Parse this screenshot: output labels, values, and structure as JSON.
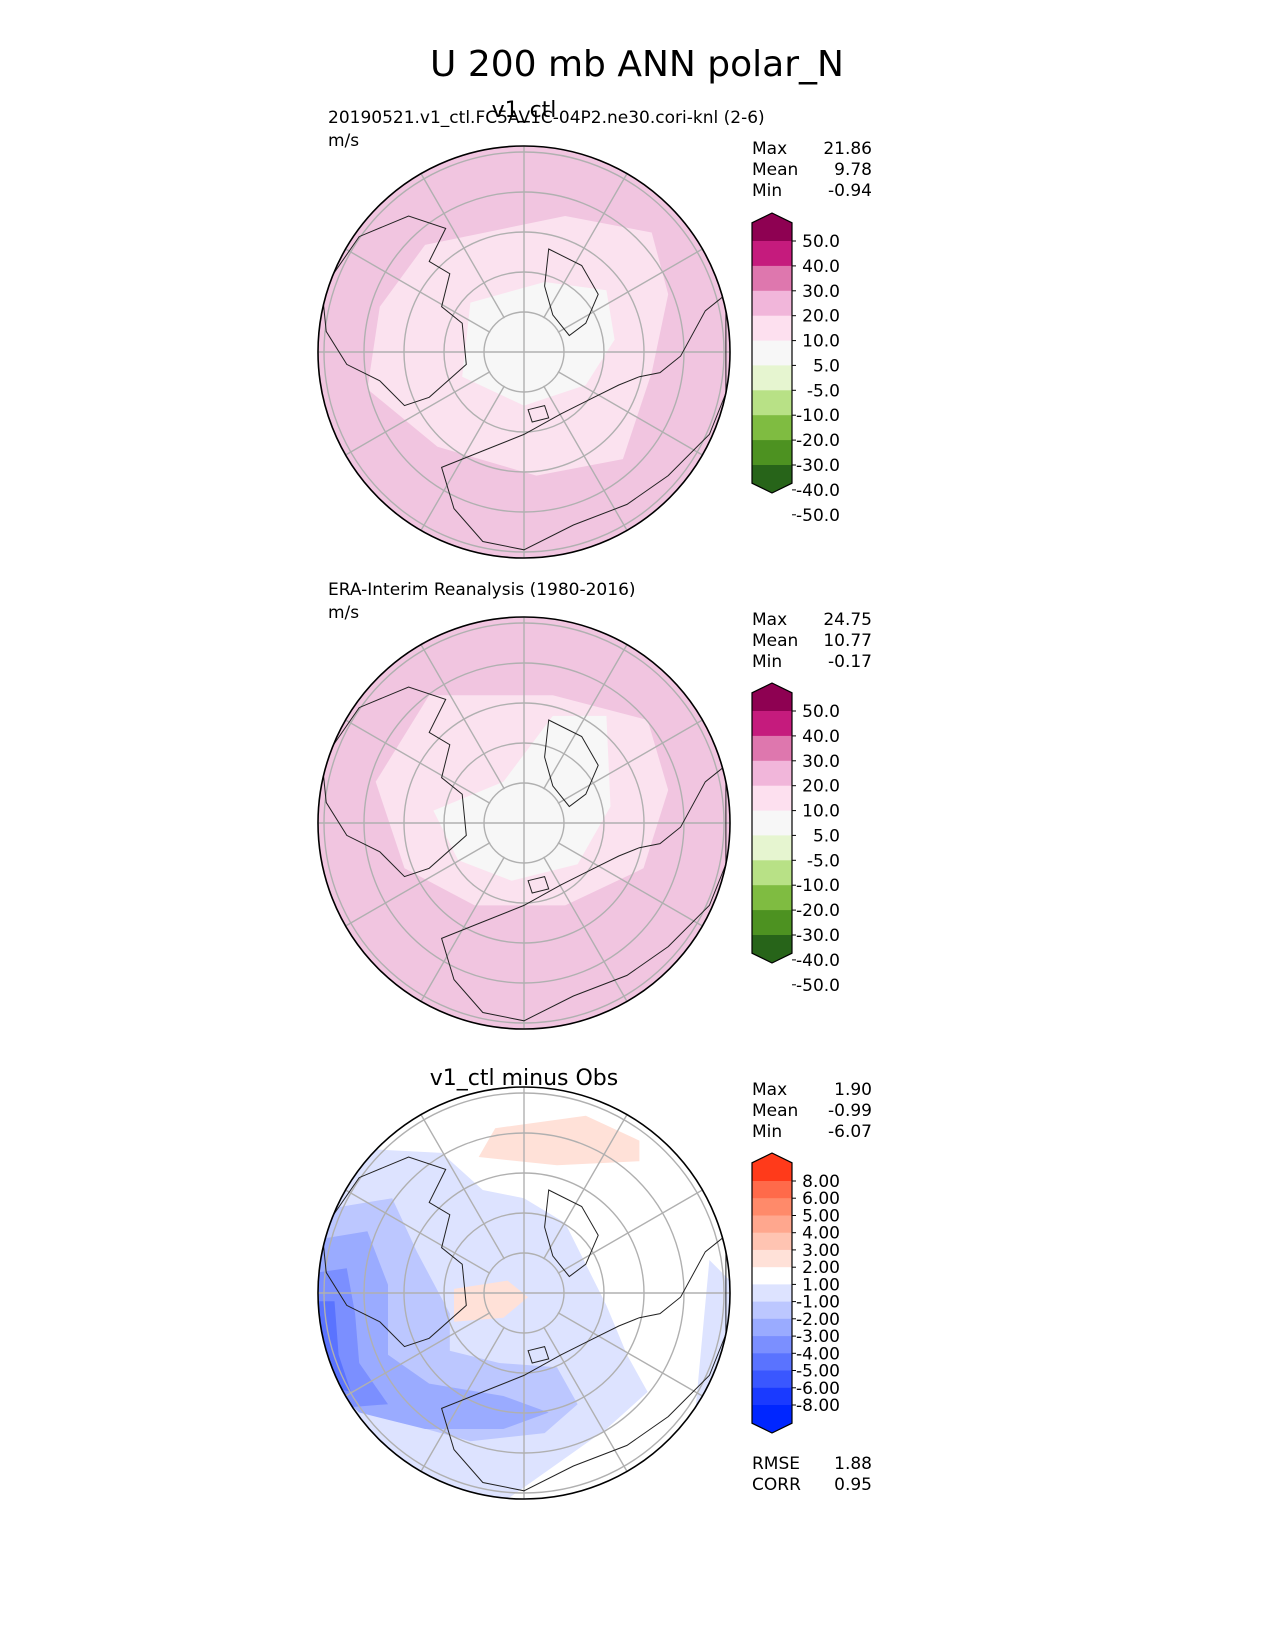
{
  "title": "U 200 mb ANN polar_N",
  "chart_data": [
    {
      "type": "heatmap",
      "projection": "north polar stereographic",
      "title": "v1_ctl",
      "subtitle": "20190521.v1_ctl.FC5AV1C-04P2.ne30.cori-knl (2-6)",
      "units": "m/s",
      "stats": [
        {
          "label": "Max",
          "value": "21.86"
        },
        {
          "label": "Mean",
          "value": "9.78"
        },
        {
          "label": "Min",
          "value": "-0.94"
        }
      ],
      "colorbar": {
        "ticks": [
          "50.0",
          "40.0",
          "30.0",
          "20.0",
          "10.0",
          "5.0",
          "-5.0",
          "-10.0",
          "-20.0",
          "-30.0",
          "-40.0",
          "-50.0"
        ],
        "colors": [
          "#8e0152",
          "#c51b7d",
          "#de77ae",
          "#f1b6da",
          "#fde0ef",
          "#f7f7f7",
          "#e6f5d0",
          "#b8e186",
          "#7fbc41",
          "#4d9221",
          "#276419"
        ]
      },
      "regions": [
        {
          "value": 15,
          "color": "#f1c5e0"
        },
        {
          "value": 8,
          "color": "#fbe2ef"
        },
        {
          "value": 2,
          "color": "#f7f7f7"
        },
        {
          "value": 22,
          "color": "#e898c6"
        }
      ]
    },
    {
      "type": "heatmap",
      "projection": "north polar stereographic",
      "title": "",
      "subtitle": "ERA-Interim Reanalysis (1980-2016)",
      "units": "m/s",
      "stats": [
        {
          "label": "Max",
          "value": "24.75"
        },
        {
          "label": "Mean",
          "value": "10.77"
        },
        {
          "label": "Min",
          "value": "-0.17"
        }
      ],
      "colorbar": {
        "ticks": [
          "50.0",
          "40.0",
          "30.0",
          "20.0",
          "10.0",
          "5.0",
          "-5.0",
          "-10.0",
          "-20.0",
          "-30.0",
          "-40.0",
          "-50.0"
        ],
        "colors": [
          "#8e0152",
          "#c51b7d",
          "#de77ae",
          "#f1b6da",
          "#fde0ef",
          "#f7f7f7",
          "#e6f5d0",
          "#b8e186",
          "#7fbc41",
          "#4d9221",
          "#276419"
        ]
      },
      "regions": [
        {
          "value": 15,
          "color": "#f1c5e0"
        },
        {
          "value": 8,
          "color": "#fbe2ef"
        },
        {
          "value": 2,
          "color": "#f7f7f7"
        },
        {
          "value": 22,
          "color": "#e898c6"
        }
      ]
    },
    {
      "type": "heatmap",
      "projection": "north polar stereographic",
      "title": "v1_ctl minus Obs",
      "subtitle": "",
      "units": "",
      "stats": [
        {
          "label": "Max",
          "value": "1.90"
        },
        {
          "label": "Mean",
          "value": "-0.99"
        },
        {
          "label": "Min",
          "value": "-6.07"
        }
      ],
      "extra_stats": [
        {
          "label": "RMSE",
          "value": "1.88"
        },
        {
          "label": "CORR",
          "value": "0.95"
        }
      ],
      "colorbar": {
        "ticks": [
          "8.00",
          "6.00",
          "5.00",
          "4.00",
          "3.00",
          "2.00",
          "1.00",
          "-1.00",
          "-2.00",
          "-3.00",
          "-4.00",
          "-5.00",
          "-6.00",
          "-8.00"
        ],
        "colors": [
          "#ff3a1a",
          "#ff6a4a",
          "#ff8a6a",
          "#ffa78e",
          "#ffc4b2",
          "#ffe1d8",
          "#ffffff",
          "#dde3ff",
          "#bcc7ff",
          "#9aabff",
          "#7b8fff",
          "#5a73ff",
          "#3a57ff",
          "#1a3aff",
          "#0026ff"
        ]
      },
      "regions": [
        {
          "value": -1.5,
          "color": "#dde3ff"
        },
        {
          "value": -2.5,
          "color": "#bcc7ff"
        },
        {
          "value": -3.5,
          "color": "#9aabff"
        },
        {
          "value": -4.5,
          "color": "#7b8fff"
        },
        {
          "value": -5.5,
          "color": "#5a73ff"
        },
        {
          "value": 1.5,
          "color": "#ffe1d8"
        }
      ]
    }
  ]
}
